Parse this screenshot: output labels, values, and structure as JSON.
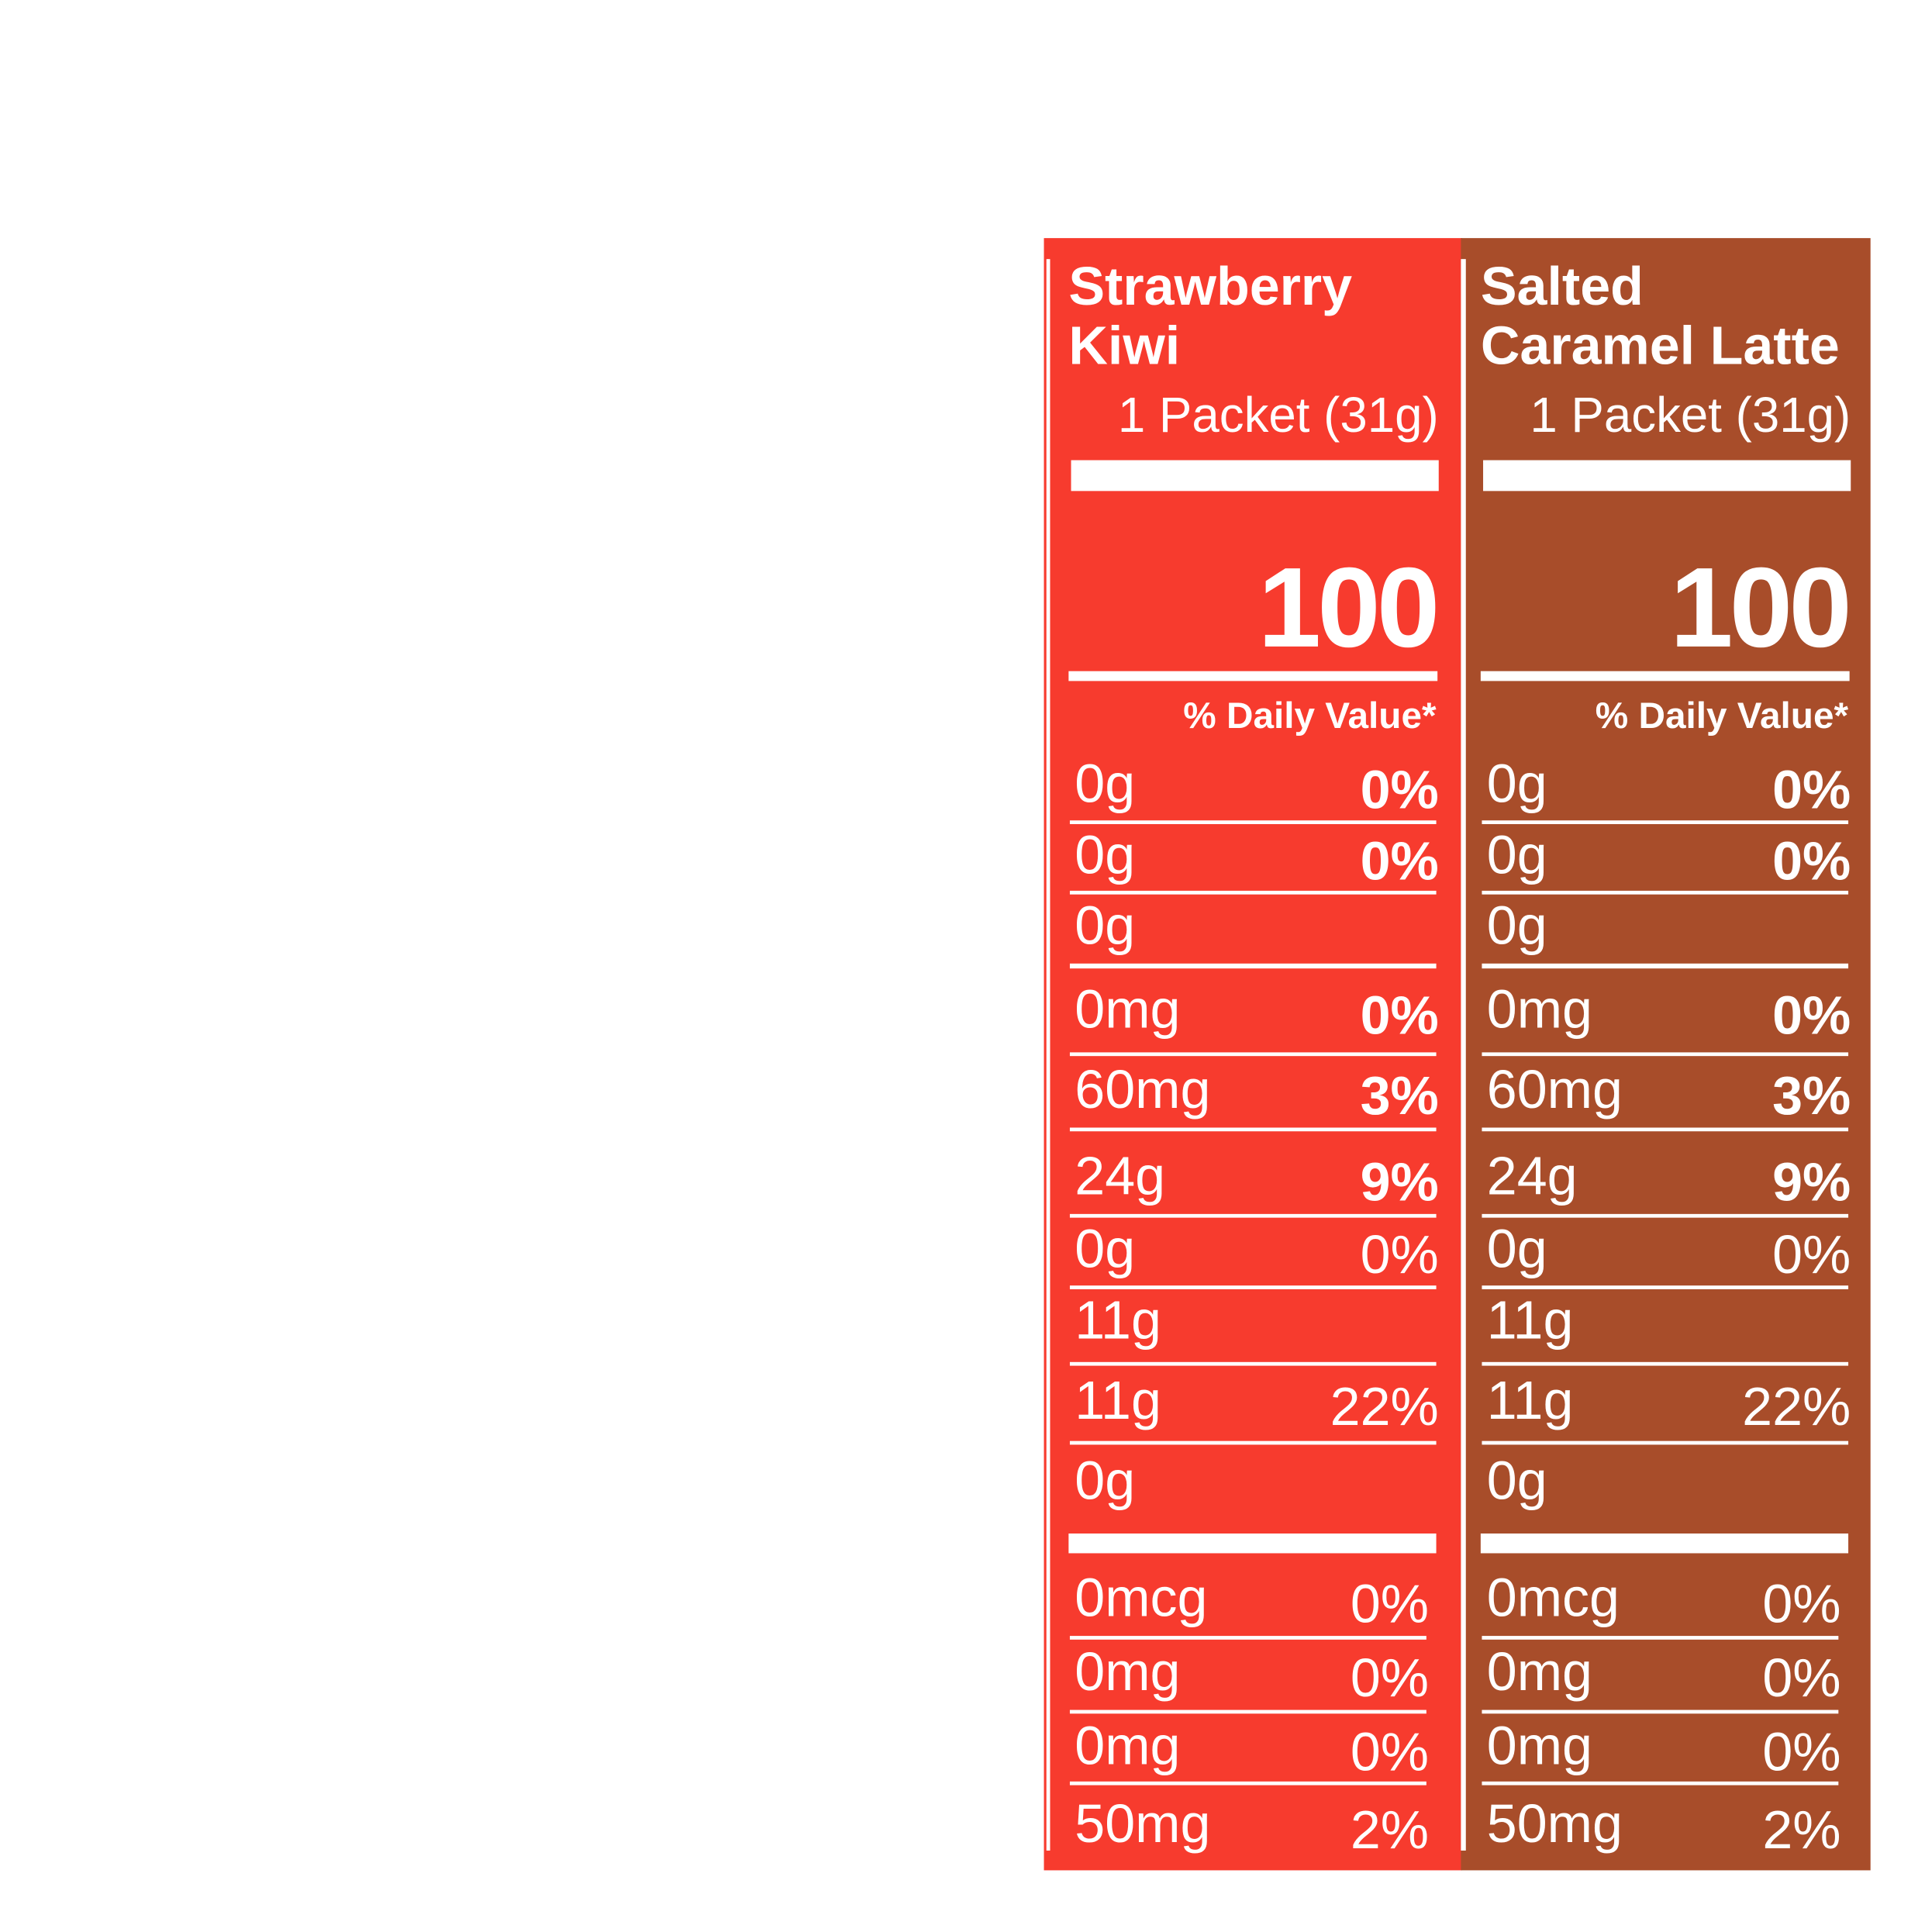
{
  "columns": [
    {
      "title": [
        "Strawberry",
        "Kiwi"
      ],
      "serving": "1 Packet (31g)",
      "calories": "100",
      "dv_header": "% Daily Value*",
      "rows": [
        [
          "0g",
          "0%"
        ],
        [
          "0g",
          "0%"
        ],
        [
          "0g",
          null
        ],
        [
          "0mg",
          "0%"
        ],
        [
          "60mg",
          "3%"
        ],
        [
          "24g",
          "9%"
        ],
        [
          "0g",
          "0%"
        ],
        [
          "11g",
          null
        ],
        [
          "11g",
          "22%"
        ],
        [
          "0g",
          null
        ],
        [
          "0mcg",
          "0%"
        ],
        [
          "0mg",
          "0%"
        ],
        [
          "0mg",
          "0%"
        ],
        [
          "50mg",
          "2%"
        ]
      ]
    },
    {
      "title": [
        "Salted",
        "Caramel Latte"
      ],
      "serving": "1 Packet (31g)",
      "calories": "100",
      "dv_header": "% Daily Value*",
      "rows": [
        [
          "0g",
          "0%"
        ],
        [
          "0g",
          "0%"
        ],
        [
          "0g",
          null
        ],
        [
          "0mg",
          "0%"
        ],
        [
          "60mg",
          "3%"
        ],
        [
          "24g",
          "9%"
        ],
        [
          "0g",
          "0%"
        ],
        [
          "11g",
          null
        ],
        [
          "11g",
          "22%"
        ],
        [
          "0g",
          null
        ],
        [
          "0mcg",
          "0%"
        ],
        [
          "0mg",
          "0%"
        ],
        [
          "0mg",
          "0%"
        ],
        [
          "50mg",
          "2%"
        ]
      ]
    }
  ]
}
